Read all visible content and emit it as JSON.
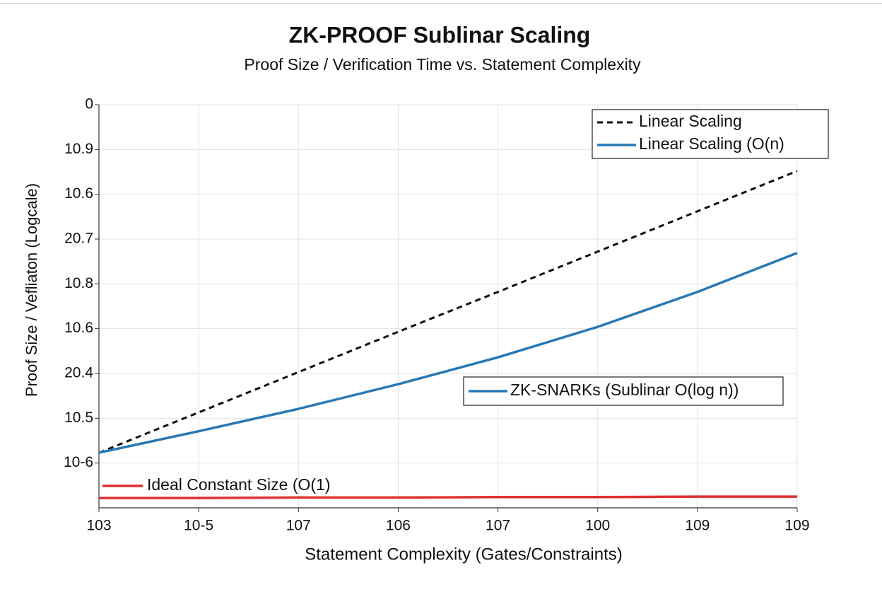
{
  "chart_data": {
    "type": "line",
    "title": "ZK-PROOF Sublinar Scaling",
    "subtitle": "Proof Size / Verification Time vs. Statement Complexity",
    "x_label": "Statement Complexity (Gates/Constraints)",
    "y_label": "Proof Size / Vefliaton (Logcale)",
    "x": [
      0,
      1,
      2,
      3,
      4,
      5,
      6,
      7
    ],
    "xlim": [
      0,
      7
    ],
    "xticks": [
      {
        "value": 0,
        "label": "103"
      },
      {
        "value": 1,
        "label": "10-5"
      },
      {
        "value": 2,
        "label": "107"
      },
      {
        "value": 3,
        "label": "106"
      },
      {
        "value": 4,
        "label": "107"
      },
      {
        "value": 5,
        "label": "100"
      },
      {
        "value": 6,
        "label": "109"
      },
      {
        "value": 7,
        "label": "109"
      }
    ],
    "ylim": [
      0,
      9
    ],
    "yticks": [
      {
        "value": 1,
        "label": "10-6"
      },
      {
        "value": 2,
        "label": "10.5"
      },
      {
        "value": 3,
        "label": "20.4"
      },
      {
        "value": 4,
        "label": "10.6"
      },
      {
        "value": 5,
        "label": "10.8"
      },
      {
        "value": 6,
        "label": "20.7"
      },
      {
        "value": 7,
        "label": "10.6"
      },
      {
        "value": 8,
        "label": "10.9"
      },
      {
        "value": 9,
        "label": "0"
      }
    ],
    "grid": true,
    "series": [
      {
        "name": "Linear Scaling",
        "color": "#111111",
        "line_style": "dashed",
        "values": [
          1.23,
          2.13,
          3.03,
          3.93,
          4.82,
          5.72,
          6.62,
          7.52
        ]
      },
      {
        "name": "ZK-SNARKs (Sublinar O(log n))",
        "color": "#2878b5",
        "line_style": "solid",
        "values": [
          1.23,
          1.71,
          2.21,
          2.76,
          3.36,
          4.04,
          4.82,
          5.69
        ]
      },
      {
        "name": "Ideal Constant Size (O(1)",
        "color": "#e03030",
        "line_style": "solid",
        "values": [
          0.22,
          0.22,
          0.23,
          0.23,
          0.24,
          0.24,
          0.25,
          0.25
        ]
      }
    ],
    "legend_extra": {
      "label": "Linear Scaling (O(n)",
      "color": "#2878b5"
    }
  }
}
